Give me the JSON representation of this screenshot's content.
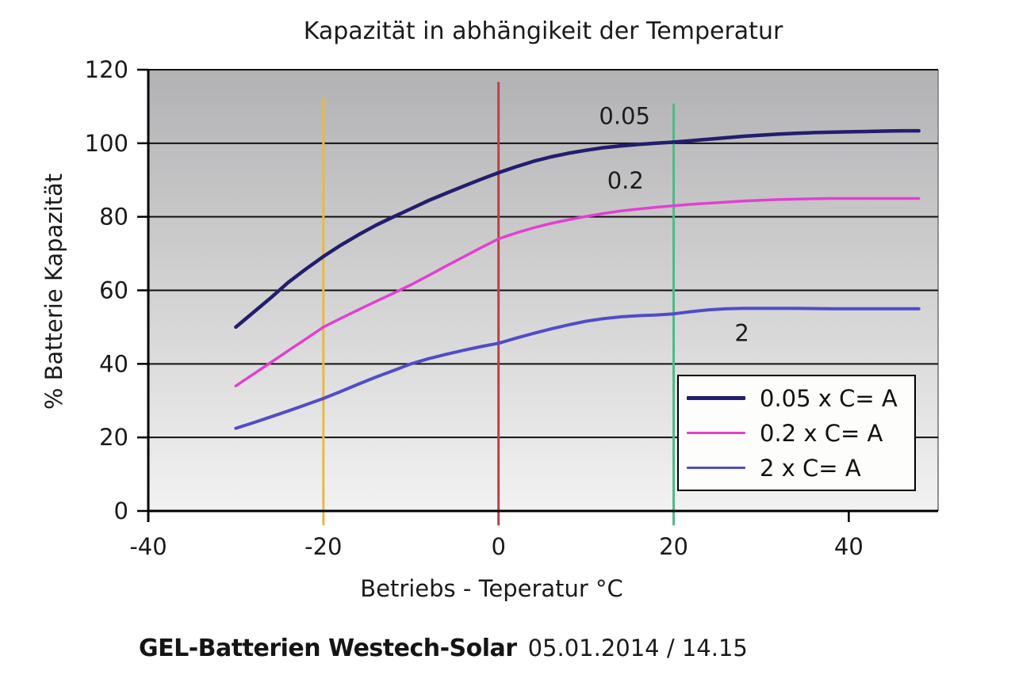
{
  "title": "Kapazität in abhängikeit der Temperatur",
  "caption": {
    "bold": "GEL-Batterien Westech-Solar",
    "date": "05.01.2014 / 14.15"
  },
  "chart_data": {
    "type": "line",
    "title": "Kapazität in abhängikeit der Temperatur",
    "xlabel": "Betriebs - Teperatur °C",
    "ylabel": "% Batterie Kapazität",
    "xlim": [
      -40,
      50.2
    ],
    "ylim": [
      0,
      120
    ],
    "xticks": [
      -40,
      -20,
      0,
      20,
      40
    ],
    "yticks": [
      0,
      20,
      40,
      60,
      80,
      100,
      120
    ],
    "x_black_ticks": [
      -40,
      40
    ],
    "grid": "horizontal",
    "gridline_color": "#111111",
    "axis_color": "#000000",
    "plot_bg_gradient": [
      "#b2b2b4",
      "#f2f2f2"
    ],
    "plot_right_border_color": "#8f8f92",
    "text_color": "#1a1a1a",
    "series": [
      {
        "name": "0.05 x C= A",
        "color": "#221e6e",
        "stroke_width": 4.5,
        "annotation": {
          "text": "0.05",
          "t": 14.4,
          "v": 107.4
        },
        "points": [
          [
            -30,
            50
          ],
          [
            -28,
            54
          ],
          [
            -26,
            58
          ],
          [
            -24,
            62.2
          ],
          [
            -22,
            65.8
          ],
          [
            -20,
            69.2
          ],
          [
            -18,
            72.3
          ],
          [
            -16,
            75.1
          ],
          [
            -14,
            77.7
          ],
          [
            -12,
            80
          ],
          [
            -10,
            82.2
          ],
          [
            -8,
            84.4
          ],
          [
            -6,
            86.4
          ],
          [
            -4,
            88.3
          ],
          [
            -2,
            90.2
          ],
          [
            0,
            92
          ],
          [
            2,
            93.6
          ],
          [
            4,
            95.1
          ],
          [
            6,
            96.3
          ],
          [
            8,
            97.3
          ],
          [
            10,
            98.1
          ],
          [
            12,
            98.8
          ],
          [
            14,
            99.3
          ],
          [
            16,
            99.7
          ],
          [
            18,
            100
          ],
          [
            20,
            100.3
          ],
          [
            22,
            100.7
          ],
          [
            24,
            101.1
          ],
          [
            26,
            101.5
          ],
          [
            28,
            101.9
          ],
          [
            30,
            102.2
          ],
          [
            32,
            102.5
          ],
          [
            34,
            102.7
          ],
          [
            36,
            102.9
          ],
          [
            38,
            103
          ],
          [
            40,
            103.1
          ],
          [
            42,
            103.2
          ],
          [
            44,
            103.3
          ],
          [
            46,
            103.4
          ],
          [
            48,
            103.4
          ]
        ]
      },
      {
        "name": "0.2 x C= A",
        "color": "#e33fd1",
        "stroke_width": 3.5,
        "annotation": {
          "text": "0.2",
          "t": 14.5,
          "v": 89.8
        },
        "points": [
          [
            -30,
            34
          ],
          [
            -28,
            37.2
          ],
          [
            -26,
            40.4
          ],
          [
            -24,
            43.6
          ],
          [
            -22,
            46.8
          ],
          [
            -20,
            50
          ],
          [
            -18,
            52.4
          ],
          [
            -16,
            54.7
          ],
          [
            -14,
            57
          ],
          [
            -12,
            59.2
          ],
          [
            -10,
            61.5
          ],
          [
            -8,
            64
          ],
          [
            -6,
            66.6
          ],
          [
            -4,
            69.1
          ],
          [
            -2,
            71.6
          ],
          [
            0,
            74
          ],
          [
            2,
            75.6
          ],
          [
            4,
            77
          ],
          [
            6,
            78.2
          ],
          [
            8,
            79.2
          ],
          [
            10,
            80.1
          ],
          [
            12,
            80.9
          ],
          [
            14,
            81.6
          ],
          [
            16,
            82.1
          ],
          [
            18,
            82.6
          ],
          [
            20,
            83
          ],
          [
            22,
            83.4
          ],
          [
            24,
            83.7
          ],
          [
            26,
            84
          ],
          [
            28,
            84.3
          ],
          [
            30,
            84.5
          ],
          [
            32,
            84.7
          ],
          [
            34,
            84.8
          ],
          [
            36,
            84.9
          ],
          [
            38,
            85
          ],
          [
            40,
            85
          ],
          [
            44,
            85
          ],
          [
            48,
            85
          ]
        ]
      },
      {
        "name": "2 x C= A",
        "color": "#514cc8",
        "stroke_width": 4,
        "annotation": {
          "text": "2",
          "t": 27.8,
          "v": 48.4
        },
        "points": [
          [
            -30,
            22.5
          ],
          [
            -28,
            24
          ],
          [
            -26,
            25.6
          ],
          [
            -24,
            27.2
          ],
          [
            -22,
            28.9
          ],
          [
            -20,
            30.6
          ],
          [
            -18,
            32.5
          ],
          [
            -16,
            34.5
          ],
          [
            -14,
            36.4
          ],
          [
            -12,
            38.2
          ],
          [
            -10,
            40
          ],
          [
            -8,
            41.4
          ],
          [
            -6,
            42.6
          ],
          [
            -4,
            43.7
          ],
          [
            -2,
            44.7
          ],
          [
            0,
            45.6
          ],
          [
            2,
            47
          ],
          [
            4,
            48.3
          ],
          [
            6,
            49.5
          ],
          [
            8,
            50.6
          ],
          [
            10,
            51.6
          ],
          [
            12,
            52.3
          ],
          [
            14,
            52.8
          ],
          [
            16,
            53.1
          ],
          [
            18,
            53.3
          ],
          [
            20,
            53.6
          ],
          [
            22,
            54.2
          ],
          [
            24,
            54.7
          ],
          [
            26,
            55
          ],
          [
            28,
            55.1
          ],
          [
            30,
            55.1
          ],
          [
            34,
            55.1
          ],
          [
            38,
            55
          ],
          [
            42,
            55
          ],
          [
            46,
            55
          ],
          [
            48,
            55
          ]
        ]
      }
    ],
    "vertical_lines": [
      {
        "t": -20,
        "color": "#e6ba47",
        "v_top": 112.3,
        "v_bottom": -3.9
      },
      {
        "t": 0,
        "color": "#b84343",
        "v_top": 116.7,
        "v_bottom": -3.9
      },
      {
        "t": 20,
        "color": "#4fba85",
        "v_top": 110.8,
        "v_bottom": -3.9
      }
    ],
    "legend": {
      "position": "bottom-right",
      "entries": [
        "0.05 x C= A",
        "0.2 x C= A",
        "2 x C= A"
      ],
      "line_heights": [
        5,
        3,
        3
      ]
    }
  }
}
